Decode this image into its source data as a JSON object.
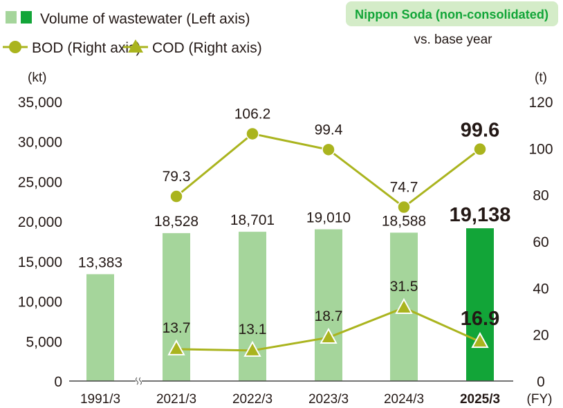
{
  "chart_data": {
    "type": "bar",
    "categories": [
      "1991/3",
      "2021/3",
      "2022/3",
      "2023/3",
      "2024/3",
      "2025/3"
    ],
    "highlight_category": "2025/3",
    "x_unit": "(FY)",
    "axis_break_after": "1991/3",
    "left_axis": {
      "unit": "(kt)",
      "ylim": [
        0,
        35000
      ],
      "ticks": [
        "0",
        "5,000",
        "10,000",
        "15,000",
        "20,000",
        "25,000",
        "30,000",
        "35,000"
      ]
    },
    "right_axis": {
      "unit": "(t)",
      "ylim": [
        0,
        120
      ],
      "ticks": [
        "0",
        "20",
        "40",
        "60",
        "80",
        "100",
        "120"
      ]
    },
    "grid": false,
    "legend_placement": "top-left",
    "series": [
      {
        "name": "Volume of wastewater (Left axis)",
        "kind": "bar",
        "axis": "left",
        "values": [
          13383,
          18528,
          18701,
          19010,
          18588,
          19138
        ],
        "labels": [
          "13,383",
          "18,528",
          "18,701",
          "19,010",
          "18,588",
          "19,138"
        ]
      },
      {
        "name": "BOD (Right axis)",
        "kind": "line-circle",
        "axis": "right",
        "values": [
          null,
          79.3,
          106.2,
          99.4,
          74.7,
          99.6
        ],
        "labels": [
          "",
          "79.3",
          "106.2",
          "99.4",
          "74.7",
          "99.6"
        ]
      },
      {
        "name": "COD (Right axis)",
        "kind": "line-triangle",
        "axis": "right",
        "values": [
          null,
          13.7,
          13.1,
          18.7,
          31.5,
          16.9
        ],
        "labels": [
          "",
          "13.7",
          "13.1",
          "18.7",
          "31.5",
          "16.9"
        ]
      }
    ],
    "badge": "Nippon Soda (non-consolidated)",
    "note": "vs. base year",
    "colors": {
      "bar": "#a5d59b",
      "bar_highlight": "#12a538",
      "line": "#aab41e",
      "badge_bg": "#d4ecc8",
      "badge_text": "#12a538"
    }
  }
}
